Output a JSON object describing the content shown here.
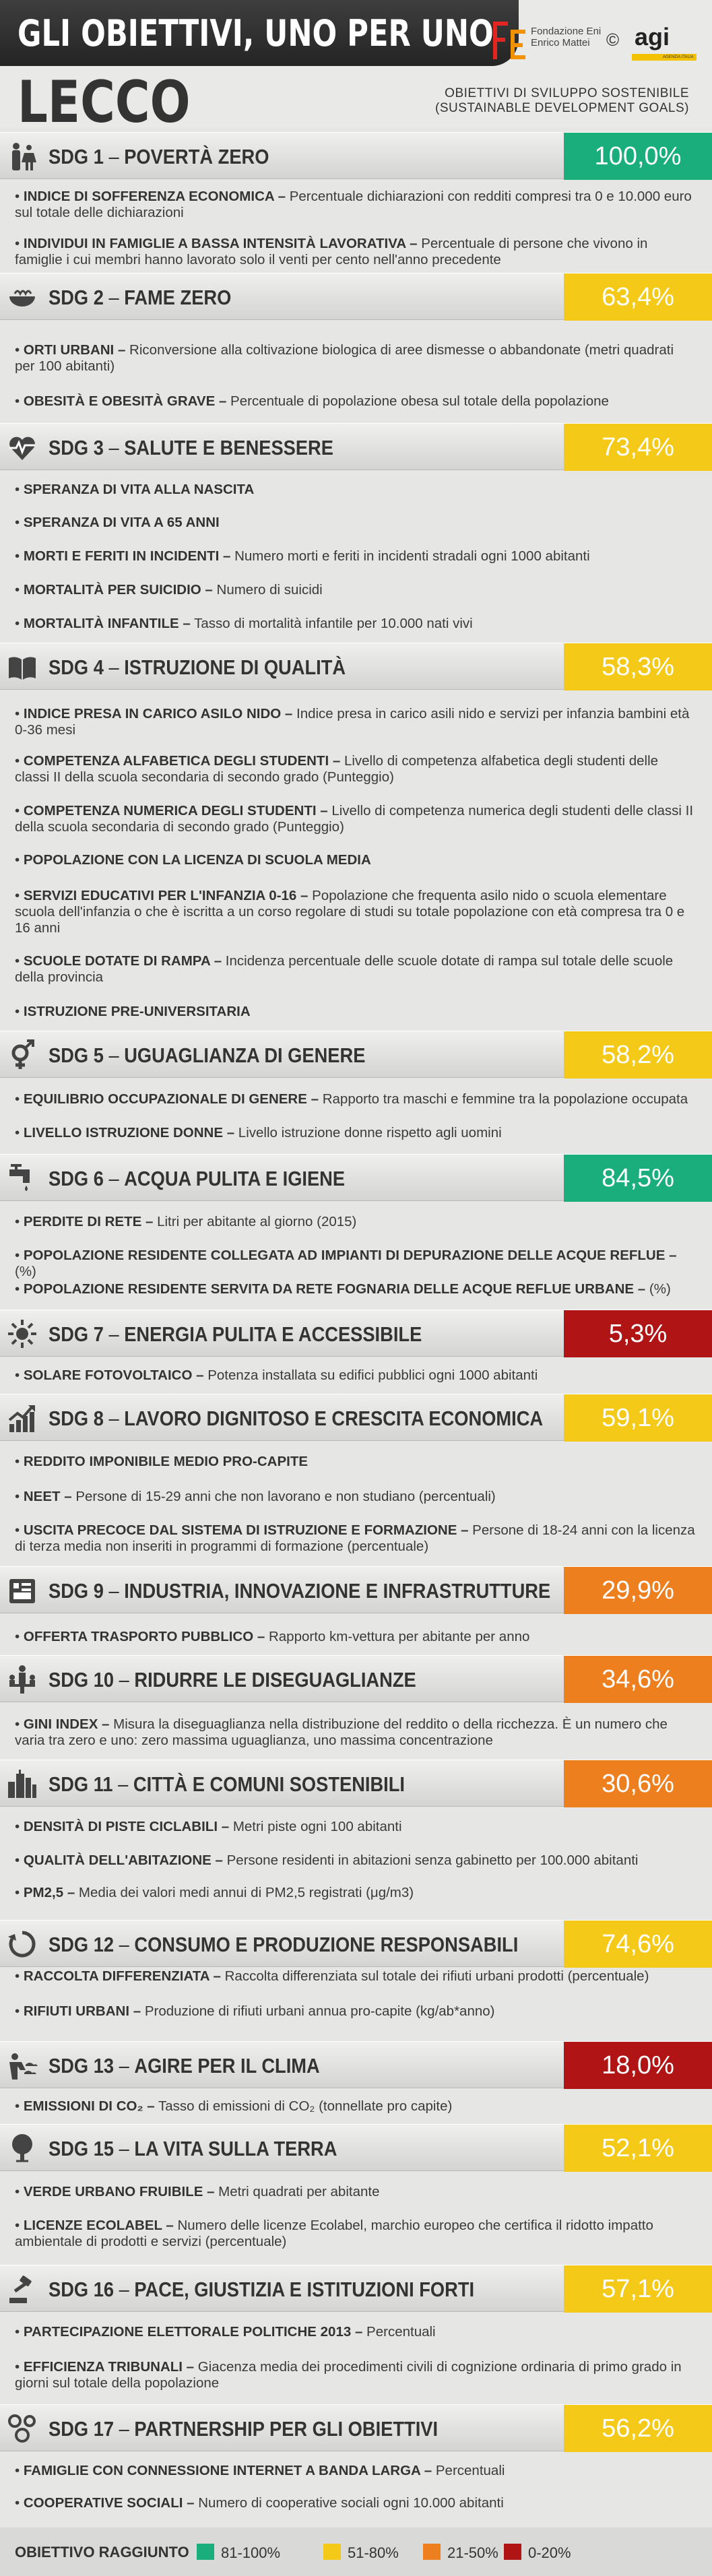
{
  "header": {
    "title": "GLI OBIETTIVI, UNO PER UNO",
    "city": "LECCO",
    "foundation_name_1": "Fondazione Eni",
    "foundation_name_2": "Enrico Mattei",
    "copyright_symbol": "©",
    "agi_logo": "agi",
    "agi_tagline": "AGENZIA ITALIA",
    "subtitle_1": "OBIETTIVI DI SVILUPPO SOSTENIBILE",
    "subtitle_2": "(SUSTAINABLE DEVELOPMENT GOALS)"
  },
  "colors": {
    "green": "#1aae7d",
    "yellow": "#f5c918",
    "orange": "#ee7f1f",
    "red": "#b01414"
  },
  "sdgs": [
    {
      "name": "SDG 1",
      "title": "POVERTÀ ZERO",
      "value": "100,0%",
      "color": "green",
      "icon": "family-icon",
      "indicators": [
        {
          "bold": "INDICE DI SOFFERENZA ECONOMICA –",
          "text": " Percentuale dichiarazioni con redditi compresi tra 0 e 10.000 euro sul totale delle dichiarazioni"
        },
        {
          "bold": "INDIVIDUI IN FAMIGLIE A BASSA INTENSITÀ LAVORATIVA –",
          "text": " Percentuale di persone che vivono in famiglie i cui membri hanno lavorato solo il venti per cento nell'anno precedente"
        }
      ]
    },
    {
      "name": "SDG 2",
      "title": "FAME ZERO",
      "value": "63,4%",
      "color": "yellow",
      "icon": "bowl-icon",
      "indicators": [
        {
          "bold": "ORTI URBANI –",
          "text": " Riconversione alla coltivazione biologica di aree dismesse o abbandonate (metri quadrati per 100 abitanti)"
        },
        {
          "bold": "OBESITÀ E OBESITÀ GRAVE –",
          "text": " Percentuale di popolazione obesa sul totale della popolazione"
        }
      ]
    },
    {
      "name": "SDG 3",
      "title": "SALUTE E BENESSERE",
      "value": "73,4%",
      "color": "yellow",
      "icon": "heartbeat-icon",
      "indicators": [
        {
          "bold": "SPERANZA DI VITA ALLA NASCITA",
          "text": ""
        },
        {
          "bold": "SPERANZA DI VITA A 65 ANNI",
          "text": ""
        },
        {
          "bold": "MORTI E FERITI IN INCIDENTI –",
          "text": " Numero morti e feriti in incidenti stradali ogni 1000 abitanti"
        },
        {
          "bold": "MORTALITÀ PER SUICIDIO –",
          "text": " Numero di suicidi"
        },
        {
          "bold": "MORTALITÀ INFANTILE –",
          "text": " Tasso di mortalità infantile per 10.000 nati vivi"
        }
      ]
    },
    {
      "name": "SDG 4",
      "title": "ISTRUZIONE DI QUALITÀ",
      "value": "58,3%",
      "color": "yellow",
      "icon": "book-icon",
      "indicators": [
        {
          "bold": "INDICE PRESA IN CARICO ASILO NIDO –",
          "text": " Indice presa in carico asili nido e servizi per infanzia bambini età 0-36 mesi"
        },
        {
          "bold": "COMPETENZA ALFABETICA DEGLI STUDENTI –",
          "text": " Livello di competenza alfabetica degli studenti delle classi II della scuola secondaria di secondo grado (Punteggio)"
        },
        {
          "bold": "COMPETENZA NUMERICA DEGLI STUDENTI –",
          "text": " Livello di competenza numerica degli studenti delle classi II della scuola secondaria di secondo grado (Punteggio)"
        },
        {
          "bold": "POPOLAZIONE CON LA LICENZA DI SCUOLA MEDIA",
          "text": ""
        },
        {
          "bold": "SERVIZI EDUCATIVI PER L'INFANZIA 0-16 –",
          "text": " Popolazione che frequenta asilo nido o scuola elementare scuola dell'infanzia o che è iscritta a un corso regolare di studi su totale popolazione con età compresa tra 0 e 16 anni"
        },
        {
          "bold": "SCUOLE DOTATE DI RAMPA –",
          "text": " Incidenza percentuale delle scuole dotate di rampa sul totale delle scuole della provincia"
        },
        {
          "bold": "ISTRUZIONE PRE-UNIVERSITARIA",
          "text": ""
        }
      ]
    },
    {
      "name": "SDG 5",
      "title": "UGUAGLIANZA DI GENERE",
      "value": "58,2%",
      "color": "yellow",
      "icon": "gender-icon",
      "indicators": [
        {
          "bold": "EQUILIBRIO OCCUPAZIONALE  DI GENERE –",
          "text": " Rapporto tra maschi e femmine tra la popolazione occupata"
        },
        {
          "bold": "LIVELLO ISTRUZIONE DONNE –",
          "text": " Livello istruzione donne rispetto agli uomini"
        }
      ]
    },
    {
      "name": "SDG 6",
      "title": "ACQUA PULITA E IGIENE",
      "value": "84,5%",
      "color": "green",
      "icon": "faucet-icon",
      "indicators": [
        {
          "bold": "PERDITE DI RETE –",
          "text": " Litri per abitante al giorno (2015)"
        },
        {
          "bold": "POPOLAZIONE RESIDENTE COLLEGATA AD IMPIANTI DI DEPURAZIONE DELLE ACQUE REFLUE –",
          "text": " (%)"
        },
        {
          "bold": "POPOLAZIONE RESIDENTE SERVITA DA RETE FOGNARIA DELLE ACQUE REFLUE URBANE –",
          "text": " (%)"
        }
      ]
    },
    {
      "name": "SDG 7",
      "title": "ENERGIA PULITA E ACCESSIBILE",
      "value": "5,3%",
      "color": "red",
      "icon": "sun-icon",
      "indicators": [
        {
          "bold": "SOLARE FOTOVOLTAICO –",
          "text": " Potenza installata su edifici pubblici ogni 1000 abitanti"
        }
      ]
    },
    {
      "name": "SDG 8",
      "title": "LAVORO DIGNITOSO E CRESCITA ECONOMICA",
      "value": "59,1%",
      "color": "yellow",
      "icon": "growth-chart-icon",
      "indicators": [
        {
          "bold": "REDDITO IMPONIBILE MEDIO PRO-CAPITE",
          "text": ""
        },
        {
          "bold": "NEET –",
          "text": " Persone di 15-29 anni che non lavorano e non studiano (percentuali)"
        },
        {
          "bold": "USCITA PRECOCE DAL SISTEMA DI ISTRUZIONE E FORMAZIONE –",
          "text": " Persone di 18-24 anni con la licenza di terza media non inseriti in programmi di formazione (percentuale)"
        }
      ]
    },
    {
      "name": "SDG 9",
      "title": "INDUSTRIA, INNOVAZIONE E INFRASTRUTTURE",
      "value": "29,9%",
      "color": "orange",
      "icon": "factory-icon",
      "indicators": [
        {
          "bold": "OFFERTA TRASPORTO PUBBLICO –",
          "text": " Rapporto km-vettura per abitante per anno"
        }
      ]
    },
    {
      "name": "SDG 10",
      "title": "RIDURRE LE DISEGUAGLIANZE",
      "value": "34,6%",
      "color": "orange",
      "icon": "people-balance-icon",
      "indicators": [
        {
          "bold": "GINI INDEX –",
          "text": " Misura la diseguaglianza nella distribuzione del reddito o della ricchezza. È un numero che varia tra zero e uno: zero massima uguaglianza, uno massima concentrazione"
        }
      ]
    },
    {
      "name": "SDG 11",
      "title": "CITTÀ E COMUNI SOSTENIBILI",
      "value": "30,6%",
      "color": "orange",
      "icon": "city-icon",
      "indicators": [
        {
          "bold": "DENSITÀ DI PISTE CICLABILI –",
          "text": " Metri piste ogni 100 abitanti"
        },
        {
          "bold": "QUALITÀ DELL'ABITAZIONE –",
          "text": " Persone residenti in abitazioni senza gabinetto per 100.000 abitanti"
        },
        {
          "bold": "PM2,5 –",
          "text": " Media dei valori medi annui di PM2,5 registrati (μg/m3)"
        }
      ]
    },
    {
      "name": "SDG 12",
      "title": "CONSUMO E PRODUZIONE RESPONSABILI",
      "value": "74,6%",
      "color": "yellow",
      "icon": "recycle-icon",
      "indicators": [
        {
          "bold": "RACCOLTA DIFFERENZIATA –",
          "text": " Raccolta differenziata sul totale dei rifiuti urbani prodotti (percentuale)"
        },
        {
          "bold": "RIFIUTI URBANI –",
          "text": " Produzione di rifiuti urbani annua pro-capite (kg/ab*anno)"
        }
      ]
    },
    {
      "name": "SDG 13",
      "title": "AGIRE PER IL CLIMA",
      "value": "18,0%",
      "color": "red",
      "icon": "climate-icon",
      "indicators": [
        {
          "bold": "EMISSIONI DI CO₂ –",
          "text": " Tasso di emissioni di CO₂ (tonnellate pro capite)"
        }
      ]
    },
    {
      "name": "SDG 15",
      "title": "LA VITA SULLA TERRA",
      "value": "52,1%",
      "color": "yellow",
      "icon": "tree-icon",
      "indicators": [
        {
          "bold": "VERDE URBANO FRUIBILE –",
          "text": " Metri quadrati per abitante"
        },
        {
          "bold": "LICENZE ECOLABEL –",
          "text": " Numero delle licenze Ecolabel,  marchio europeo che certifica il ridotto impatto ambientale di prodotti e servizi (percentuale)"
        }
      ]
    },
    {
      "name": "SDG 16",
      "title": "PACE, GIUSTIZIA E ISTITUZIONI FORTI",
      "value": "57,1%",
      "color": "yellow",
      "icon": "gavel-icon",
      "indicators": [
        {
          "bold": "PARTECIPAZIONE ELETTORALE POLITICHE 2013 –",
          "text": " Percentuali"
        },
        {
          "bold": "EFFICIENZA TRIBUNALI –",
          "text": " Giacenza media dei procedimenti civili di cognizione ordinaria di primo grado in giorni sul totale della popolazione"
        }
      ]
    },
    {
      "name": "SDG 17",
      "title": "PARTNERSHIP PER GLI OBIETTIVI",
      "value": "56,2%",
      "color": "yellow",
      "icon": "network-icon",
      "indicators": [
        {
          "bold": "FAMIGLIE CON CONNESSIONE INTERNET A BANDA LARGA –",
          "text": " Percentuali"
        },
        {
          "bold": "COOPERATIVE SOCIALI –",
          "text": " Numero di cooperative sociali ogni 10.000 abitanti"
        }
      ]
    }
  ],
  "legend": {
    "label": "OBIETTIVO RAGGIUNTO",
    "items": [
      {
        "label": "81-100%",
        "color": "#1aae7d"
      },
      {
        "label": "51-80%",
        "color": "#f5c918"
      },
      {
        "label": "21-50%",
        "color": "#ee7f1f"
      },
      {
        "label": "0-20%",
        "color": "#b01414"
      }
    ]
  }
}
